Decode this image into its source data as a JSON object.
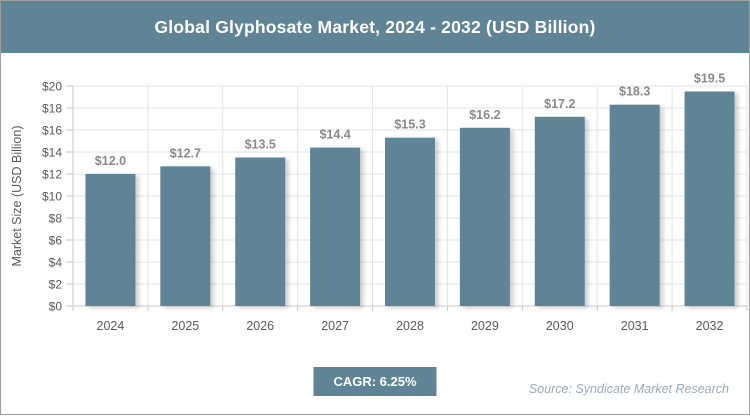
{
  "title": "Global Glyphosate Market, 2024 - 2032 (USD Billion)",
  "footer": {
    "cagr_label": "CAGR: 6.25%",
    "source_text": "Source: Syndicate Market Research"
  },
  "colors": {
    "accent": "#5f8496",
    "bar_fill": "#5f8496",
    "grid_line": "#e3e3e3",
    "axis_line": "#c9c9c9",
    "axis_text": "#595959",
    "value_label_text": "#8a8a8a",
    "title_text": "#ffffff",
    "source_text": "#9aabb8",
    "frame_border": "#9e9e9e"
  },
  "chart_data": {
    "type": "bar",
    "title": "Global Glyphosate Market, 2024 - 2032 (USD Billion)",
    "categories": [
      "2024",
      "2025",
      "2026",
      "2027",
      "2028",
      "2029",
      "2030",
      "2031",
      "2032"
    ],
    "values": [
      12.0,
      12.7,
      13.5,
      14.4,
      15.3,
      16.2,
      17.2,
      18.3,
      19.5
    ],
    "value_labels": [
      "$12.0",
      "$12.7",
      "$13.5",
      "$14.4",
      "$15.3",
      "$16.2",
      "$17.2",
      "$18.3",
      "$19.5"
    ],
    "xlabel": "",
    "ylabel": "Market Size (USD Billion)",
    "ylim": [
      0,
      20
    ],
    "ytick_step": 2,
    "ytick_prefix": "$",
    "grid": true,
    "legend": false
  }
}
